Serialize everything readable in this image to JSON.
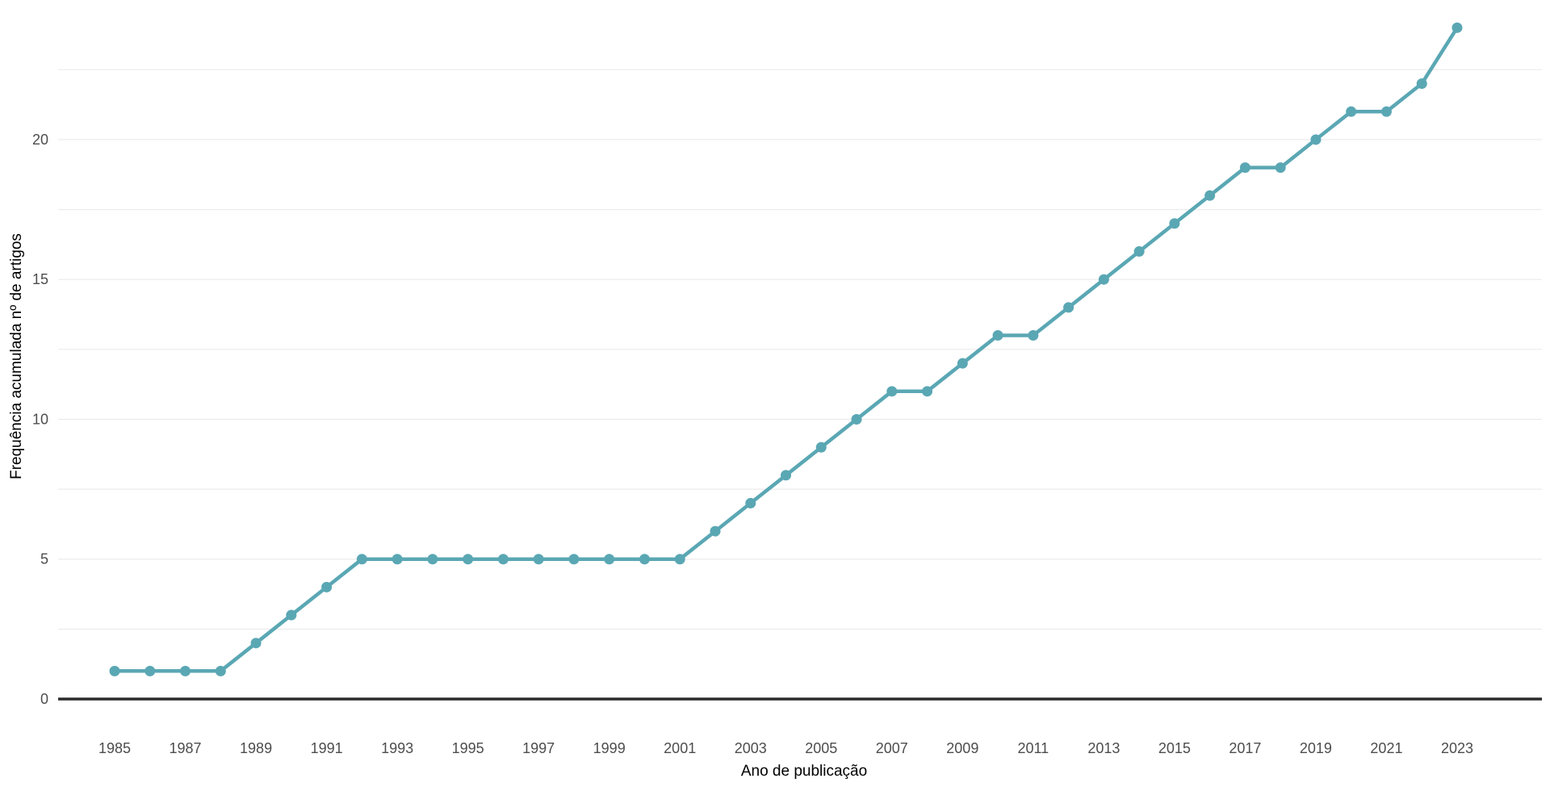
{
  "chart_data": {
    "type": "line",
    "title": "",
    "xlabel": "Ano de publicação",
    "ylabel": "Frequência acumulada nº de artigos",
    "xlim": [
      1983.4,
      2025.4
    ],
    "ylim": [
      0,
      24.5
    ],
    "grid": true,
    "x_tick_labels": [
      "1985",
      "1987",
      "1989",
      "1991",
      "1993",
      "1995",
      "1997",
      "1999",
      "2001",
      "2003",
      "2005",
      "2007",
      "2009",
      "2011",
      "2013",
      "2015",
      "2017",
      "2019",
      "2021",
      "2023"
    ],
    "y_tick_labels": [
      "0",
      "5",
      "10",
      "15",
      "20"
    ],
    "series": [
      {
        "color": "#5AA7B4",
        "x": [
          1985,
          1986,
          1987,
          1988,
          1989,
          1990,
          1991,
          1992,
          1993,
          1994,
          1995,
          1996,
          1997,
          1998,
          1999,
          2000,
          2001,
          2002,
          2003,
          2004,
          2005,
          2006,
          2007,
          2008,
          2009,
          2010,
          2011,
          2012,
          2013,
          2014,
          2015,
          2016,
          2017,
          2018,
          2019,
          2020,
          2021,
          2022,
          2023
        ],
        "y": [
          1,
          1,
          1,
          1,
          2,
          3,
          4,
          5,
          5,
          5,
          5,
          5,
          5,
          5,
          5,
          5,
          5,
          6,
          7,
          8,
          9,
          10,
          11,
          11,
          12,
          13,
          13,
          14,
          15,
          16,
          17,
          18,
          19,
          19,
          20,
          21,
          21,
          22,
          24
        ]
      }
    ]
  }
}
